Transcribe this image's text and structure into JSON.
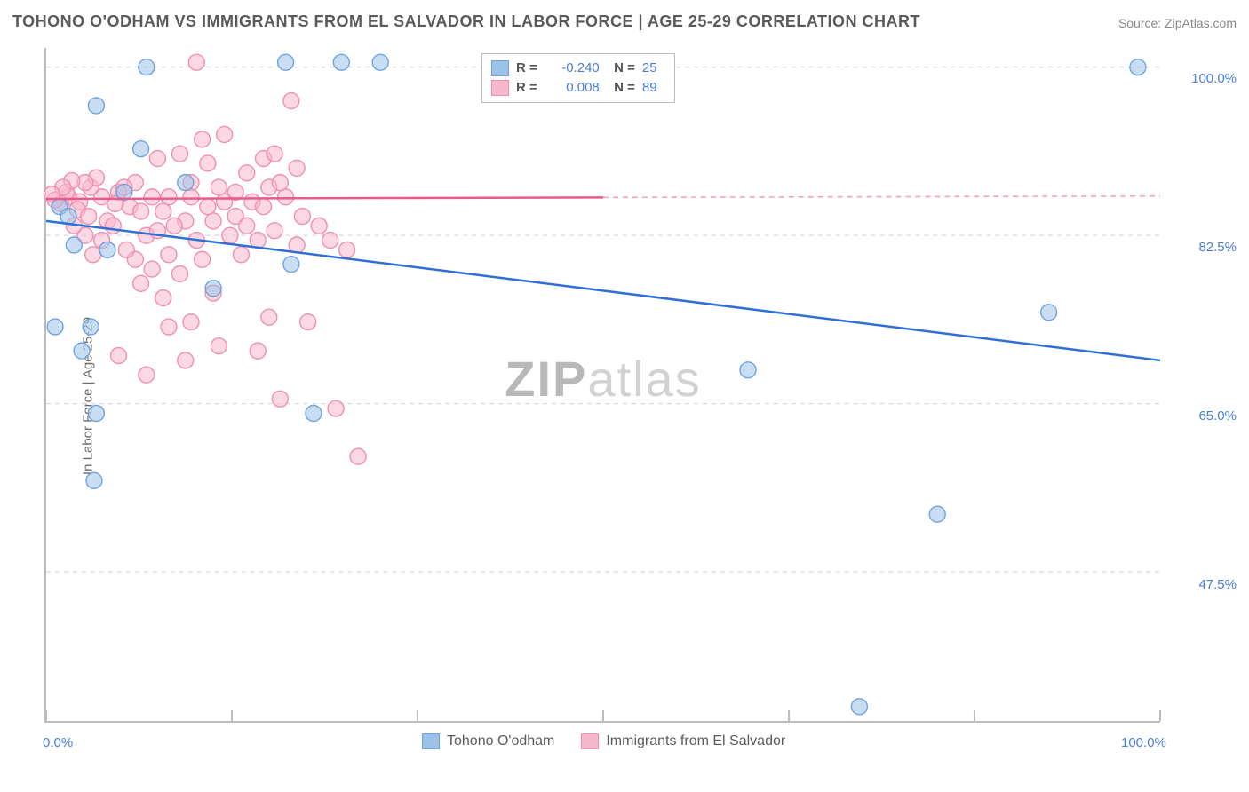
{
  "title": "TOHONO O'ODHAM VS IMMIGRANTS FROM EL SALVADOR IN LABOR FORCE | AGE 25-29 CORRELATION CHART",
  "source": "Source: ZipAtlas.com",
  "y_axis_label": "In Labor Force | Age 25-29",
  "watermark": {
    "part1": "ZIP",
    "part2": "atlas"
  },
  "colors": {
    "blue_stroke": "#6fa3e0",
    "blue_fill": "#9cc2ea",
    "pink_stroke": "#f08fb0",
    "pink_fill": "#f8b8cc",
    "blue_line": "#2d6fd8",
    "pink_line": "#e85a8a",
    "pink_dash": "#f3a3bd",
    "grid": "#d9d9d9",
    "tick": "#bcbcbc",
    "text_axis": "#4a7cd8",
    "text_title": "#5a5a5a"
  },
  "chart": {
    "type": "scatter",
    "xlim": [
      0,
      100
    ],
    "ylim": [
      32,
      102
    ],
    "x_ticks": [
      0,
      16.67,
      33.33,
      50,
      66.67,
      83.33,
      100
    ],
    "x_tick_labels": [
      "0.0%",
      "",
      "",
      "",
      "",
      "",
      "100.0%"
    ],
    "y_gridlines": [
      47.5,
      65.0,
      82.5,
      100.0
    ],
    "y_tick_labels": [
      "47.5%",
      "65.0%",
      "82.5%",
      "100.0%"
    ],
    "marker_radius": 9,
    "marker_opacity": 0.55,
    "line_width": 2.5,
    "series": [
      {
        "name": "Tohono O'odham",
        "color_key": "blue",
        "R": "-0.240",
        "N": "25",
        "trend": {
          "x1": 0,
          "y1": 84.0,
          "x2": 100,
          "y2": 69.5,
          "dashed_from": null
        },
        "points": [
          [
            9.0,
            100.0
          ],
          [
            4.5,
            96.0
          ],
          [
            8.5,
            91.5
          ],
          [
            21.5,
            100.5
          ],
          [
            26.5,
            100.5
          ],
          [
            30.0,
            100.5
          ],
          [
            1.2,
            85.5
          ],
          [
            2.5,
            81.5
          ],
          [
            5.5,
            81.0
          ],
          [
            22.0,
            79.5
          ],
          [
            0.8,
            73.0
          ],
          [
            4.0,
            73.0
          ],
          [
            15.0,
            77.0
          ],
          [
            3.2,
            70.5
          ],
          [
            24.0,
            64.0
          ],
          [
            4.5,
            64.0
          ],
          [
            4.3,
            57.0
          ],
          [
            2.0,
            84.5
          ],
          [
            98.0,
            100.0
          ],
          [
            90.0,
            74.5
          ],
          [
            63.0,
            68.5
          ],
          [
            80.0,
            53.5
          ],
          [
            73.0,
            33.5
          ],
          [
            12.5,
            88.0
          ],
          [
            7.0,
            87.0
          ]
        ]
      },
      {
        "name": "Immigrants from El Salvador",
        "color_key": "pink",
        "R": "0.008",
        "N": "89",
        "trend": {
          "x1": 0,
          "y1": 86.3,
          "x2": 100,
          "y2": 86.6,
          "dashed_from": 50
        },
        "points": [
          [
            13.5,
            100.5
          ],
          [
            22.0,
            96.5
          ],
          [
            14.0,
            92.5
          ],
          [
            10.0,
            90.5
          ],
          [
            12.0,
            91.0
          ],
          [
            14.5,
            90.0
          ],
          [
            16.0,
            93.0
          ],
          [
            18.0,
            89.0
          ],
          [
            19.5,
            90.5
          ],
          [
            20.5,
            91.0
          ],
          [
            11.0,
            86.5
          ],
          [
            13.0,
            88.0
          ],
          [
            15.5,
            87.5
          ],
          [
            17.0,
            87.0
          ],
          [
            18.5,
            86.0
          ],
          [
            20.0,
            87.5
          ],
          [
            21.5,
            86.5
          ],
          [
            23.0,
            84.5
          ],
          [
            24.5,
            83.5
          ],
          [
            8.0,
            88.0
          ],
          [
            9.5,
            86.5
          ],
          [
            10.5,
            85.0
          ],
          [
            12.5,
            84.0
          ],
          [
            6.5,
            87.0
          ],
          [
            7.5,
            85.5
          ],
          [
            5.0,
            86.5
          ],
          [
            4.0,
            87.5
          ],
          [
            3.0,
            86.0
          ],
          [
            2.0,
            86.5
          ],
          [
            1.3,
            85.8
          ],
          [
            0.8,
            86.2
          ],
          [
            1.8,
            87.0
          ],
          [
            2.8,
            85.2
          ],
          [
            3.8,
            84.5
          ],
          [
            5.5,
            84.0
          ],
          [
            6.2,
            85.8
          ],
          [
            7.0,
            87.5
          ],
          [
            8.5,
            85.0
          ],
          [
            4.5,
            88.5
          ],
          [
            3.5,
            88.0
          ],
          [
            2.3,
            88.2
          ],
          [
            1.5,
            87.5
          ],
          [
            0.5,
            86.8
          ],
          [
            9.0,
            82.5
          ],
          [
            10.0,
            83.0
          ],
          [
            11.5,
            83.5
          ],
          [
            13.5,
            82.0
          ],
          [
            15.0,
            84.0
          ],
          [
            16.5,
            82.5
          ],
          [
            8.0,
            80.0
          ],
          [
            11.0,
            80.5
          ],
          [
            14.0,
            80.0
          ],
          [
            17.5,
            80.5
          ],
          [
            19.0,
            82.0
          ],
          [
            20.5,
            83.0
          ],
          [
            22.5,
            81.5
          ],
          [
            5.0,
            82.0
          ],
          [
            6.0,
            83.5
          ],
          [
            3.5,
            82.5
          ],
          [
            2.5,
            83.5
          ],
          [
            4.2,
            80.5
          ],
          [
            7.2,
            81.0
          ],
          [
            9.5,
            79.0
          ],
          [
            12.0,
            78.5
          ],
          [
            15.0,
            76.5
          ],
          [
            10.5,
            76.0
          ],
          [
            8.5,
            77.5
          ],
          [
            20.0,
            74.0
          ],
          [
            13.0,
            73.5
          ],
          [
            11.0,
            73.0
          ],
          [
            23.5,
            73.5
          ],
          [
            25.5,
            82.0
          ],
          [
            27.0,
            81.0
          ],
          [
            26.0,
            64.5
          ],
          [
            21.0,
            65.5
          ],
          [
            19.0,
            70.5
          ],
          [
            15.5,
            71.0
          ],
          [
            12.5,
            69.5
          ],
          [
            9.0,
            68.0
          ],
          [
            6.5,
            70.0
          ],
          [
            17.0,
            84.5
          ],
          [
            19.5,
            85.5
          ],
          [
            21.0,
            88.0
          ],
          [
            22.5,
            89.5
          ],
          [
            18.0,
            83.5
          ],
          [
            16.0,
            86.0
          ],
          [
            14.5,
            85.5
          ],
          [
            13.0,
            86.5
          ],
          [
            28.0,
            59.5
          ]
        ]
      }
    ]
  },
  "legend_bottom": [
    {
      "label": "Tohono O'odham",
      "color_key": "blue"
    },
    {
      "label": "Immigrants from El Salvador",
      "color_key": "pink"
    }
  ]
}
